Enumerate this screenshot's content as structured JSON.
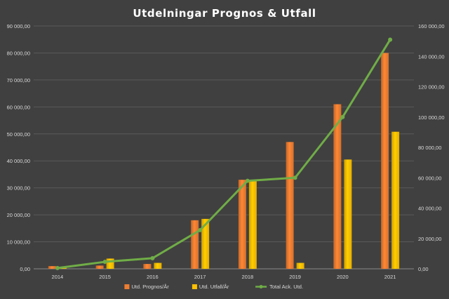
{
  "chart_data": {
    "type": "bar",
    "title": "Utdelningar  Prognos  &  Utfall",
    "categories": [
      "2014",
      "2015",
      "2016",
      "2017",
      "2018",
      "2019",
      "2020",
      "2021"
    ],
    "series": [
      {
        "name": "Utd. Prognos/År",
        "type": "bar",
        "axis": "left",
        "color": "#ed7d31",
        "values": [
          1000,
          1200,
          1800,
          18000,
          33000,
          47000,
          61000,
          80000
        ]
      },
      {
        "name": "Utd. Utfall/År",
        "type": "bar",
        "axis": "left",
        "color": "#ffc000",
        "values": [
          500,
          3800,
          2200,
          18500,
          33000,
          2200,
          40500,
          50800
        ]
      },
      {
        "name": "Total Ack. Utd.",
        "type": "line",
        "axis": "right",
        "color": "#70ad47",
        "values": [
          500,
          4600,
          7000,
          25500,
          58000,
          60000,
          100000,
          151000
        ]
      }
    ],
    "y_left": {
      "ylim": [
        0,
        90000
      ],
      "tick_labels": [
        "0,00",
        "10 000,00",
        "20 000,00",
        "30 000,00",
        "40 000,00",
        "50 000,00",
        "60 000,00",
        "70 000,00",
        "80 000,00",
        "90 000,00"
      ]
    },
    "y_right": {
      "ylim": [
        0,
        160000
      ],
      "tick_labels": [
        "0,00",
        "20 000,00",
        "40 000,00",
        "60 000,00",
        "80 000,00",
        "100 000,00",
        "120 000,00",
        "140 000,00",
        "160 000,00"
      ]
    },
    "grid": true,
    "legend_position": "bottom"
  }
}
